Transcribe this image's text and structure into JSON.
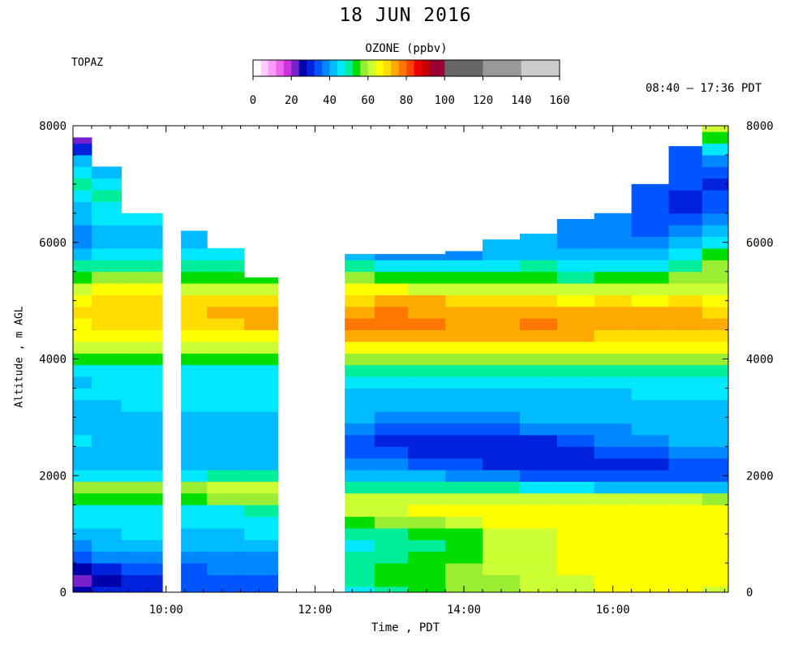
{
  "title": "18 JUN 2016",
  "station": "TOPAZ",
  "time_range": "08:40 – 17:36 PDT",
  "colorbar": {
    "title": "OZONE (ppbv)",
    "tick_labels": [
      "0",
      "20",
      "40",
      "60",
      "80",
      "100",
      "120",
      "140",
      "160"
    ],
    "levels": [
      {
        "from": 0,
        "to": 4,
        "color": "#ffffff"
      },
      {
        "from": 4,
        "to": 8,
        "color": "#ffccff"
      },
      {
        "from": 8,
        "to": 12,
        "color": "#ff99ff"
      },
      {
        "from": 12,
        "to": 16,
        "color": "#ee66ee"
      },
      {
        "from": 16,
        "to": 20,
        "color": "#cc33dd"
      },
      {
        "from": 20,
        "to": 24,
        "color": "#7722cc"
      },
      {
        "from": 24,
        "to": 28,
        "color": "#0000aa"
      },
      {
        "from": 28,
        "to": 32,
        "color": "#0022dd"
      },
      {
        "from": 32,
        "to": 36,
        "color": "#0055ff"
      },
      {
        "from": 36,
        "to": 40,
        "color": "#0088ff"
      },
      {
        "from": 40,
        "to": 44,
        "color": "#00bbff"
      },
      {
        "from": 44,
        "to": 48,
        "color": "#00e8ff"
      },
      {
        "from": 48,
        "to": 52,
        "color": "#00ee99"
      },
      {
        "from": 52,
        "to": 56,
        "color": "#00dd00"
      },
      {
        "from": 56,
        "to": 60,
        "color": "#99ee33"
      },
      {
        "from": 60,
        "to": 64,
        "color": "#ccff33"
      },
      {
        "from": 64,
        "to": 68,
        "color": "#ffff00"
      },
      {
        "from": 68,
        "to": 72,
        "color": "#ffdd00"
      },
      {
        "from": 72,
        "to": 76,
        "color": "#ffaa00"
      },
      {
        "from": 76,
        "to": 80,
        "color": "#ff7700"
      },
      {
        "from": 80,
        "to": 84,
        "color": "#ff4400"
      },
      {
        "from": 84,
        "to": 88,
        "color": "#ee0000"
      },
      {
        "from": 88,
        "to": 92,
        "color": "#cc0000"
      },
      {
        "from": 92,
        "to": 100,
        "color": "#990033"
      },
      {
        "from": 100,
        "to": 120,
        "color": "#666666"
      },
      {
        "from": 120,
        "to": 140,
        "color": "#999999"
      },
      {
        "from": 140,
        "to": 160,
        "color": "#cccccc"
      }
    ]
  },
  "chart_data": {
    "type": "heatmap",
    "title": "18 JUN 2016",
    "xlabel": "Time , PDT",
    "ylabel": "Altitude , m AGL",
    "x_unit": "hours PDT",
    "xlim": [
      8.75,
      17.55
    ],
    "ylim": [
      0,
      8000
    ],
    "x_ticks": [
      {
        "value": 10,
        "label": "10:00"
      },
      {
        "value": 12,
        "label": "12:00"
      },
      {
        "value": 14,
        "label": "14:00"
      },
      {
        "value": 16,
        "label": "16:00"
      }
    ],
    "y_ticks": [
      {
        "value": 0,
        "label": "0"
      },
      {
        "value": 2000,
        "label": "2000"
      },
      {
        "value": 4000,
        "label": "4000"
      },
      {
        "value": 6000,
        "label": "6000"
      },
      {
        "value": 8000,
        "label": "8000"
      }
    ],
    "no_data_periods": [
      [
        9.95,
        10.2
      ],
      [
        11.5,
        12.4
      ]
    ],
    "profile_times": [
      8.8,
      9.2,
      9.6,
      10.3,
      10.8,
      11.3,
      12.6,
      13.0,
      13.5,
      14.0,
      14.5,
      15.0,
      15.5,
      16.0,
      16.5,
      17.0,
      17.4
    ],
    "profile_tops_m": [
      7800,
      7300,
      6500,
      6200,
      5900,
      5400,
      5800,
      5800,
      5800,
      5850,
      6050,
      6150,
      6400,
      6500,
      7000,
      7650,
      8000
    ],
    "altitudes_m": [
      0,
      200,
      400,
      600,
      800,
      1000,
      1200,
      1400,
      1600,
      1800,
      2000,
      2200,
      2400,
      2600,
      2800,
      3000,
      3200,
      3400,
      3600,
      3800,
      4000,
      4200,
      4400,
      4600,
      4800,
      5000,
      5200,
      5400,
      5600,
      5800,
      6000,
      6200,
      6400,
      6600,
      6800,
      7000,
      7200,
      7400,
      7600,
      7800,
      8000
    ],
    "ozone_ppbv": [
      [
        24,
        22,
        26,
        34,
        38,
        42,
        44,
        46,
        52,
        56,
        44,
        40,
        42,
        44,
        42,
        40,
        42,
        44,
        42,
        44,
        52,
        60,
        64,
        66,
        68,
        66,
        62,
        54,
        48,
        42,
        38,
        38,
        40,
        42,
        46,
        50,
        46,
        40,
        30,
        20,
        20
      ],
      [
        28,
        26,
        30,
        36,
        40,
        42,
        44,
        46,
        54,
        58,
        46,
        42,
        42,
        42,
        40,
        40,
        42,
        44,
        44,
        46,
        54,
        62,
        66,
        68,
        70,
        68,
        64,
        56,
        50,
        44,
        40,
        42,
        44,
        46,
        48,
        44,
        40,
        38,
        36,
        36,
        36
      ],
      [
        30,
        30,
        32,
        38,
        42,
        44,
        44,
        46,
        54,
        58,
        46,
        42,
        42,
        42,
        42,
        42,
        44,
        44,
        44,
        46,
        54,
        62,
        66,
        68,
        70,
        68,
        64,
        56,
        50,
        44,
        40,
        42,
        46,
        48,
        48,
        46,
        46,
        46,
        46,
        46,
        46
      ],
      [
        32,
        32,
        34,
        38,
        40,
        42,
        44,
        46,
        54,
        58,
        46,
        42,
        42,
        42,
        42,
        42,
        44,
        44,
        44,
        46,
        54,
        62,
        66,
        68,
        70,
        68,
        62,
        54,
        50,
        44,
        42,
        42,
        42,
        42,
        42,
        42,
        42,
        42,
        42,
        42,
        42
      ],
      [
        34,
        34,
        36,
        38,
        40,
        42,
        44,
        46,
        56,
        60,
        48,
        42,
        42,
        42,
        40,
        42,
        44,
        44,
        44,
        46,
        54,
        62,
        66,
        70,
        72,
        70,
        62,
        54,
        48,
        44,
        42,
        42,
        42,
        42,
        42,
        42,
        42,
        42,
        42,
        42,
        42
      ],
      [
        34,
        34,
        36,
        38,
        42,
        44,
        46,
        48,
        56,
        60,
        48,
        42,
        42,
        42,
        42,
        42,
        44,
        44,
        44,
        46,
        54,
        62,
        66,
        72,
        74,
        70,
        62,
        54,
        46,
        40,
        42,
        42,
        42,
        42,
        42,
        42,
        42,
        42,
        42,
        42,
        42
      ],
      [
        46,
        48,
        50,
        48,
        46,
        48,
        54,
        62,
        62,
        48,
        40,
        36,
        32,
        32,
        36,
        40,
        42,
        42,
        44,
        48,
        56,
        66,
        72,
        76,
        74,
        70,
        64,
        56,
        50,
        40,
        38,
        38,
        38,
        38,
        38,
        38,
        38,
        38,
        38,
        38,
        38
      ],
      [
        50,
        52,
        52,
        50,
        48,
        50,
        56,
        62,
        62,
        48,
        40,
        36,
        32,
        30,
        34,
        38,
        42,
        42,
        44,
        48,
        56,
        66,
        74,
        78,
        78,
        72,
        64,
        54,
        46,
        36,
        34,
        34,
        34,
        34,
        34,
        34,
        34,
        34,
        34,
        34,
        34
      ],
      [
        54,
        54,
        54,
        52,
        50,
        52,
        58,
        64,
        62,
        48,
        40,
        34,
        30,
        30,
        34,
        38,
        42,
        42,
        44,
        48,
        56,
        66,
        72,
        76,
        74,
        72,
        62,
        54,
        44,
        36,
        34,
        34,
        34,
        34,
        34,
        34,
        34,
        34,
        34,
        34,
        34
      ],
      [
        56,
        56,
        56,
        54,
        52,
        54,
        60,
        64,
        62,
        48,
        38,
        32,
        30,
        30,
        34,
        38,
        40,
        42,
        44,
        48,
        56,
        66,
        72,
        74,
        74,
        70,
        62,
        52,
        44,
        38,
        36,
        36,
        36,
        36,
        36,
        36,
        36,
        36,
        36,
        36,
        36
      ],
      [
        56,
        58,
        60,
        62,
        62,
        62,
        64,
        66,
        62,
        48,
        36,
        30,
        28,
        30,
        34,
        38,
        42,
        42,
        44,
        48,
        56,
        66,
        72,
        74,
        74,
        70,
        62,
        54,
        46,
        42,
        40,
        40,
        40,
        40,
        40,
        40,
        40,
        40,
        40,
        40,
        40
      ],
      [
        60,
        60,
        62,
        62,
        62,
        62,
        64,
        66,
        62,
        46,
        34,
        28,
        28,
        30,
        36,
        40,
        42,
        42,
        44,
        48,
        56,
        66,
        72,
        76,
        74,
        70,
        62,
        54,
        48,
        42,
        40,
        40,
        40,
        40,
        40,
        40,
        40,
        40,
        40,
        40,
        40
      ],
      [
        62,
        62,
        64,
        64,
        64,
        64,
        66,
        66,
        62,
        44,
        32,
        28,
        30,
        34,
        38,
        40,
        42,
        42,
        44,
        48,
        56,
        66,
        72,
        74,
        72,
        66,
        60,
        50,
        44,
        40,
        36,
        36,
        36,
        36,
        36,
        36,
        36,
        36,
        36,
        36,
        36
      ],
      [
        64,
        64,
        64,
        66,
        66,
        66,
        66,
        66,
        60,
        42,
        32,
        30,
        32,
        36,
        38,
        40,
        42,
        42,
        44,
        48,
        56,
        64,
        70,
        74,
        72,
        68,
        62,
        52,
        46,
        40,
        38,
        36,
        36,
        36,
        36,
        36,
        36,
        36,
        36,
        36,
        36
      ],
      [
        64,
        66,
        66,
        66,
        66,
        66,
        66,
        66,
        60,
        42,
        32,
        30,
        34,
        38,
        40,
        42,
        42,
        44,
        44,
        48,
        56,
        64,
        70,
        72,
        72,
        66,
        60,
        52,
        46,
        40,
        36,
        34,
        34,
        34,
        34,
        34,
        34,
        34,
        34,
        34,
        34
      ],
      [
        64,
        66,
        66,
        66,
        66,
        66,
        66,
        66,
        60,
        42,
        34,
        32,
        36,
        40,
        42,
        42,
        42,
        44,
        44,
        48,
        56,
        64,
        70,
        72,
        72,
        68,
        62,
        56,
        50,
        44,
        40,
        36,
        32,
        30,
        30,
        32,
        34,
        34,
        34,
        34,
        34
      ],
      [
        62,
        64,
        64,
        66,
        66,
        66,
        66,
        66,
        56,
        42,
        34,
        34,
        38,
        42,
        42,
        42,
        42,
        44,
        44,
        48,
        56,
        64,
        68,
        72,
        70,
        66,
        62,
        58,
        56,
        52,
        44,
        40,
        36,
        34,
        32,
        30,
        34,
        38,
        44,
        54,
        62
      ]
    ]
  }
}
